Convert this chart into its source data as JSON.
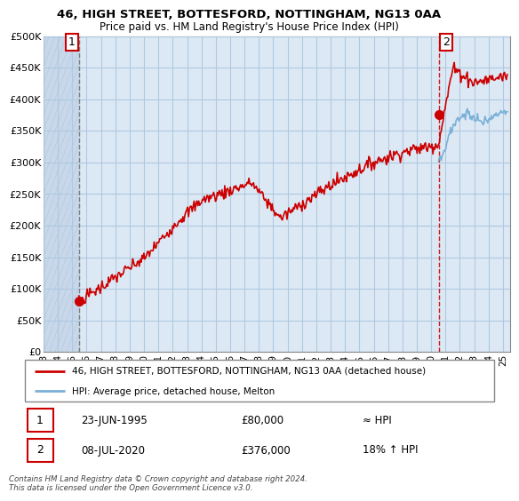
{
  "title_line1": "46, HIGH STREET, BOTTESFORD, NOTTINGHAM, NG13 0AA",
  "title_line2": "Price paid vs. HM Land Registry's House Price Index (HPI)",
  "ylabel_ticks": [
    "£0",
    "£50K",
    "£100K",
    "£150K",
    "£200K",
    "£250K",
    "£300K",
    "£350K",
    "£400K",
    "£450K",
    "£500K"
  ],
  "ytick_vals": [
    0,
    50000,
    100000,
    150000,
    200000,
    250000,
    300000,
    350000,
    400000,
    450000,
    500000
  ],
  "ylim": [
    0,
    500000
  ],
  "xlim_start": 1993.0,
  "xlim_end": 2025.5,
  "hpi_color": "#7ab0d8",
  "price_color": "#cc0000",
  "marker1_x": 1995.47,
  "marker1_y": 80000,
  "marker2_x": 2020.52,
  "marker2_y": 376000,
  "annotation1_label": "1",
  "annotation2_label": "2",
  "legend_line1": "46, HIGH STREET, BOTTESFORD, NOTTINGHAM, NG13 0AA (detached house)",
  "legend_line2": "HPI: Average price, detached house, Melton",
  "table_row1_date": "23-JUN-1995",
  "table_row1_price": "£80,000",
  "table_row1_hpi": "≈ HPI",
  "table_row2_date": "08-JUL-2020",
  "table_row2_price": "£376,000",
  "table_row2_hpi": "18% ↑ HPI",
  "footnote": "Contains HM Land Registry data © Crown copyright and database right 2024.\nThis data is licensed under the Open Government Licence v3.0.",
  "plot_bg_color": "#dce9f5",
  "hatch_bg_color": "#c8d8ea",
  "grid_color": "#b0c8e0",
  "vline1_color": "#666666",
  "vline2_color": "#cc0000",
  "xlabel_years": [
    "93",
    "94",
    "95",
    "96",
    "97",
    "98",
    "99",
    "00",
    "01",
    "02",
    "03",
    "04",
    "05",
    "06",
    "07",
    "08",
    "09",
    "10",
    "11",
    "12",
    "13",
    "14",
    "15",
    "16",
    "17",
    "18",
    "19",
    "20",
    "21",
    "22",
    "23",
    "24",
    "25"
  ]
}
